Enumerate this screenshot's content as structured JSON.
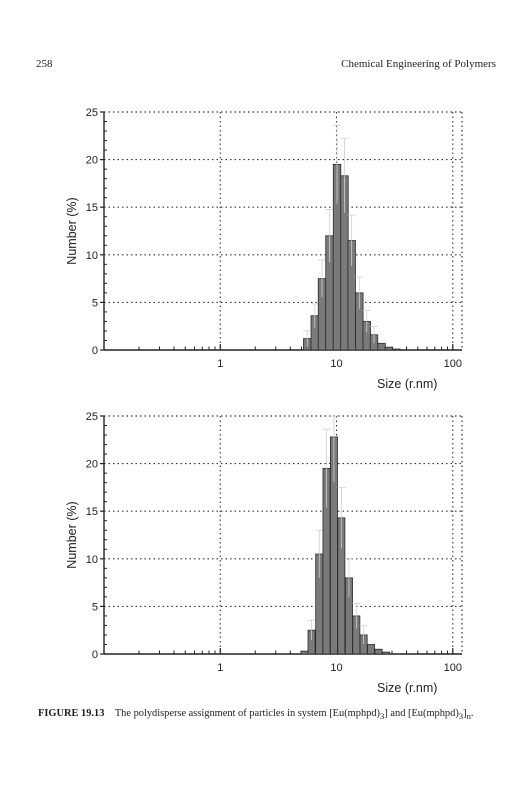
{
  "header": {
    "page_number": "258",
    "book_title": "Chemical Engineering of Polymers"
  },
  "chart_data": [
    {
      "type": "bar",
      "title": "",
      "xlabel": "Size (r.nm)",
      "ylabel": "Number (%)",
      "x_scale": "log",
      "xlim": [
        0.1,
        120
      ],
      "ylim": [
        0,
        25
      ],
      "y_ticks": [
        "0",
        "5",
        "10",
        "15",
        "20",
        "25"
      ],
      "x_ticks": [
        "1",
        "10",
        "100"
      ],
      "grid": "dotted",
      "legend": "none",
      "bar_color": "#7a7a7a",
      "bins": [
        {
          "x": 5.6,
          "value": 1.2
        },
        {
          "x": 6.5,
          "value": 3.6
        },
        {
          "x": 7.5,
          "value": 7.5
        },
        {
          "x": 8.7,
          "value": 12.0
        },
        {
          "x": 10.1,
          "value": 19.5
        },
        {
          "x": 11.7,
          "value": 18.3
        },
        {
          "x": 13.5,
          "value": 11.5
        },
        {
          "x": 15.7,
          "value": 6.0
        },
        {
          "x": 18.2,
          "value": 3.0
        },
        {
          "x": 21.0,
          "value": 1.6
        },
        {
          "x": 24.4,
          "value": 0.7
        },
        {
          "x": 28.2,
          "value": 0.3
        },
        {
          "x": 32.7,
          "value": 0.1
        }
      ]
    },
    {
      "type": "bar",
      "title": "",
      "xlabel": "Size (r.nm)",
      "ylabel": "Number (%)",
      "x_scale": "log",
      "xlim": [
        0.1,
        120
      ],
      "ylim": [
        0,
        25
      ],
      "y_ticks": [
        "0",
        "5",
        "10",
        "15",
        "20",
        "25"
      ],
      "x_ticks": [
        "1",
        "10",
        "100"
      ],
      "grid": "dotted",
      "legend": "none",
      "bar_color": "#7a7a7a",
      "bins": [
        {
          "x": 5.3,
          "value": 0.3
        },
        {
          "x": 6.1,
          "value": 2.5
        },
        {
          "x": 7.1,
          "value": 10.5
        },
        {
          "x": 8.2,
          "value": 19.5
        },
        {
          "x": 9.5,
          "value": 22.8
        },
        {
          "x": 11.0,
          "value": 14.3
        },
        {
          "x": 12.8,
          "value": 8.0
        },
        {
          "x": 14.8,
          "value": 4.0
        },
        {
          "x": 17.1,
          "value": 2.0
        },
        {
          "x": 19.8,
          "value": 1.0
        },
        {
          "x": 23.0,
          "value": 0.5
        },
        {
          "x": 26.6,
          "value": 0.2
        }
      ]
    }
  ],
  "caption": {
    "label": "FIGURE 19.13",
    "text_before": "The polydisperse assignment of particles in system [Eu(mphpd)",
    "sub1": "3",
    "text_mid": "] and [Eu(mphpd)",
    "sub2": "3",
    "text_mid2": "]",
    "sub3": "n",
    "text_end": "."
  }
}
